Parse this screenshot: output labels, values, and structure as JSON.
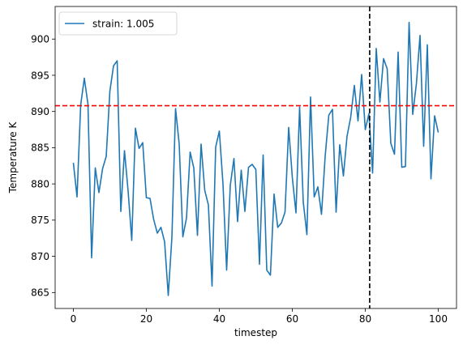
{
  "chart_data": {
    "type": "line",
    "title": "",
    "xlabel": "timestep",
    "ylabel": "Temperature K",
    "xlim": [
      -5,
      105
    ],
    "ylim": [
      862.8,
      904.5
    ],
    "xticks": [
      0,
      20,
      40,
      60,
      80,
      100
    ],
    "yticks": [
      865,
      870,
      875,
      880,
      885,
      890,
      895,
      900
    ],
    "grid": false,
    "legend": {
      "placement": "top-left",
      "entries": [
        "strain: 1.005"
      ]
    },
    "series": [
      {
        "name": "strain: 1.005",
        "color": "#1f77b4",
        "x": [
          0,
          1,
          2,
          3,
          4,
          5,
          6,
          7,
          8,
          9,
          10,
          11,
          12,
          13,
          14,
          15,
          16,
          17,
          18,
          19,
          20,
          21,
          22,
          23,
          24,
          25,
          26,
          27,
          28,
          29,
          30,
          31,
          32,
          33,
          34,
          35,
          36,
          37,
          38,
          39,
          40,
          41,
          42,
          43,
          44,
          45,
          46,
          47,
          48,
          49,
          50,
          51,
          52,
          53,
          54,
          55,
          56,
          57,
          58,
          59,
          60,
          61,
          62,
          63,
          64,
          65,
          66,
          67,
          68,
          69,
          70,
          71,
          72,
          73,
          74,
          75,
          76,
          77,
          78,
          79,
          80,
          81,
          82,
          83,
          84,
          85,
          86,
          87,
          88,
          89,
          90,
          91,
          92,
          93,
          94,
          95,
          96,
          97,
          98,
          99,
          100
        ],
        "y": [
          882.9,
          878.2,
          890.9,
          894.6,
          891.0,
          869.8,
          882.2,
          878.8,
          882.1,
          883.8,
          892.8,
          896.3,
          897.0,
          876.2,
          884.6,
          879.0,
          872.2,
          887.7,
          884.9,
          885.7,
          878.1,
          878.0,
          875.1,
          873.2,
          874.0,
          872.0,
          864.6,
          872.6,
          890.4,
          885.5,
          872.7,
          875.3,
          884.4,
          882.2,
          872.9,
          885.5,
          879.1,
          877.1,
          865.9,
          885.1,
          887.3,
          880.0,
          868.1,
          879.8,
          883.5,
          874.8,
          881.9,
          876.2,
          882.3,
          882.7,
          882.0,
          868.9,
          884.0,
          868.1,
          867.4,
          878.6,
          874.0,
          874.6,
          876.1,
          887.8,
          880.9,
          876.0,
          890.6,
          877.5,
          873.0,
          892.0,
          878.2,
          879.6,
          875.8,
          883.8,
          889.5,
          890.3,
          876.1,
          885.4,
          881.1,
          886.6,
          889.2,
          893.6,
          888.7,
          895.1,
          887.5,
          889.7,
          881.5,
          898.7,
          891.3,
          897.3,
          895.9,
          885.6,
          884.1,
          898.2,
          882.3,
          882.4,
          902.3,
          889.6,
          893.8,
          900.5,
          885.2,
          899.2,
          880.7,
          889.4,
          887.1
        ]
      }
    ],
    "annotations": [
      {
        "type": "hline",
        "y": 890.8,
        "color": "#ff0000",
        "style": "dashed"
      },
      {
        "type": "vline",
        "x": 81.2,
        "color": "#000000",
        "style": "dashed"
      }
    ]
  }
}
